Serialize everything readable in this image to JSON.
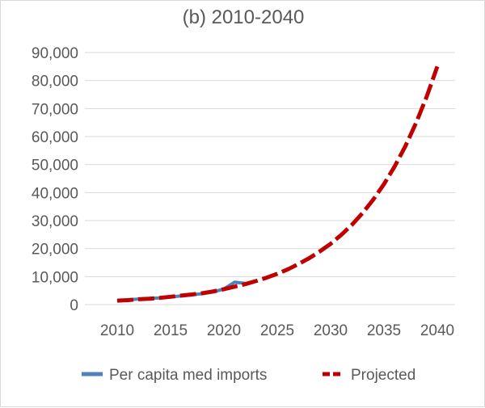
{
  "chart_data": {
    "type": "line",
    "title": "(b) 2010-2040",
    "xlabel": "",
    "ylabel": "",
    "xlim": [
      2010,
      2040
    ],
    "ylim": [
      0,
      90000
    ],
    "x_ticks": [
      "2010",
      "2015",
      "2020",
      "2025",
      "2030",
      "2035",
      "2040"
    ],
    "y_ticks": [
      "0",
      "10,000",
      "20,000",
      "30,000",
      "40,000",
      "50,000",
      "60,000",
      "70,000",
      "80,000",
      "90,000"
    ],
    "grid": true,
    "legend_position": "bottom",
    "series": [
      {
        "name": "Per capita med imports",
        "color": "#4f81bd",
        "style": "solid",
        "x": [
          2010,
          2011,
          2012,
          2013,
          2014,
          2015,
          2016,
          2017,
          2018,
          2019,
          2020,
          2021,
          2022
        ],
        "y": [
          1400,
          1700,
          2000,
          2200,
          2400,
          2700,
          3100,
          3500,
          3900,
          4500,
          5600,
          8000,
          7600
        ]
      },
      {
        "name": "Projected",
        "color": "#c00000",
        "style": "dashed",
        "x": [
          2010,
          2011,
          2012,
          2013,
          2014,
          2015,
          2016,
          2017,
          2018,
          2019,
          2020,
          2021,
          2022,
          2023,
          2024,
          2025,
          2026,
          2027,
          2028,
          2029,
          2030,
          2031,
          2032,
          2033,
          2034,
          2035,
          2036,
          2037,
          2038,
          2039,
          2040
        ],
        "y": [
          1400,
          1600,
          1900,
          2100,
          2400,
          2800,
          3200,
          3600,
          4100,
          4700,
          5500,
          6400,
          7300,
          8400,
          9600,
          11000,
          12600,
          14500,
          16600,
          19000,
          21700,
          24900,
          28500,
          32700,
          37500,
          43000,
          49300,
          56500,
          64800,
          74200,
          85000
        ]
      }
    ]
  }
}
